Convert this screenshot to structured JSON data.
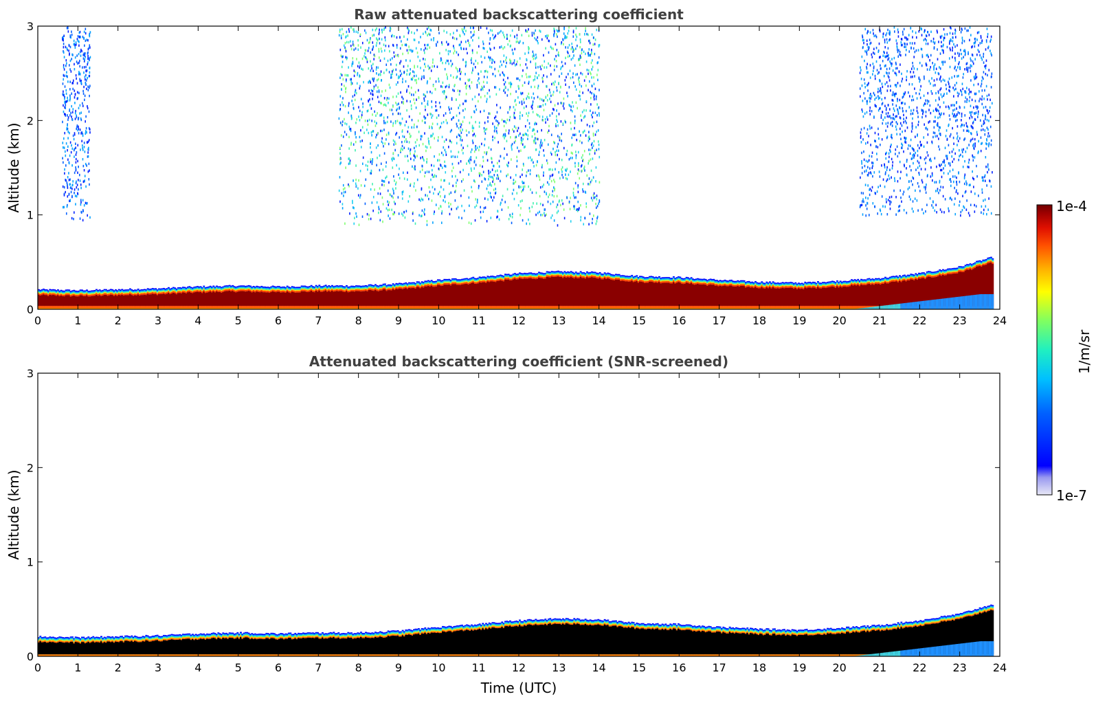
{
  "chart_data": [
    {
      "type": "heatmap",
      "title": "Raw attenuated backscattering coefficient",
      "xlabel": "",
      "ylabel": "Altitude (km)",
      "xlim": [
        0,
        24
      ],
      "ylim": [
        0,
        3
      ],
      "xticks": [
        "0",
        "1",
        "2",
        "3",
        "4",
        "5",
        "6",
        "7",
        "8",
        "9",
        "10",
        "11",
        "12",
        "13",
        "14",
        "15",
        "16",
        "17",
        "18",
        "19",
        "20",
        "21",
        "22",
        "23",
        "24"
      ],
      "yticks": [
        "0",
        "1",
        "2",
        "3"
      ],
      "layer_top_km": [
        [
          0,
          0.21
        ],
        [
          1,
          0.2
        ],
        [
          2,
          0.21
        ],
        [
          3,
          0.22
        ],
        [
          4,
          0.24
        ],
        [
          5,
          0.25
        ],
        [
          6,
          0.24
        ],
        [
          7,
          0.25
        ],
        [
          8,
          0.25
        ],
        [
          9,
          0.27
        ],
        [
          10,
          0.31
        ],
        [
          11,
          0.34
        ],
        [
          12,
          0.38
        ],
        [
          13,
          0.4
        ],
        [
          14,
          0.39
        ],
        [
          15,
          0.35
        ],
        [
          16,
          0.34
        ],
        [
          17,
          0.31
        ],
        [
          18,
          0.29
        ],
        [
          19,
          0.28
        ],
        [
          20,
          0.3
        ],
        [
          21,
          0.33
        ],
        [
          22,
          0.38
        ],
        [
          23,
          0.45
        ],
        [
          23.8,
          0.55
        ]
      ],
      "noise_regions": [
        {
          "x_range": [
            0.6,
            1.3
          ],
          "alt_range_km": [
            0.95,
            3.0
          ]
        },
        {
          "x_range": [
            7.5,
            14.0
          ],
          "alt_range_km": [
            0.9,
            3.0
          ]
        },
        {
          "x_range": [
            20.5,
            23.8
          ],
          "alt_range_km": [
            1.0,
            3.0
          ]
        }
      ]
    },
    {
      "type": "heatmap",
      "title": "Attenuated backscattering coefficient (SNR-screened)",
      "xlabel": "Time (UTC)",
      "ylabel": "Altitude (km)",
      "xlim": [
        0,
        24
      ],
      "ylim": [
        0,
        3
      ],
      "xticks": [
        "0",
        "1",
        "2",
        "3",
        "4",
        "5",
        "6",
        "7",
        "8",
        "9",
        "10",
        "11",
        "12",
        "13",
        "14",
        "15",
        "16",
        "17",
        "18",
        "19",
        "20",
        "21",
        "22",
        "23",
        "24"
      ],
      "yticks": [
        "0",
        "1",
        "2",
        "3"
      ],
      "layer_top_km": [
        [
          0,
          0.21
        ],
        [
          1,
          0.2
        ],
        [
          2,
          0.21
        ],
        [
          3,
          0.22
        ],
        [
          4,
          0.24
        ],
        [
          5,
          0.25
        ],
        [
          6,
          0.24
        ],
        [
          7,
          0.25
        ],
        [
          8,
          0.25
        ],
        [
          9,
          0.27
        ],
        [
          10,
          0.31
        ],
        [
          11,
          0.34
        ],
        [
          12,
          0.38
        ],
        [
          13,
          0.4
        ],
        [
          14,
          0.39
        ],
        [
          15,
          0.35
        ],
        [
          16,
          0.34
        ],
        [
          17,
          0.31
        ],
        [
          18,
          0.29
        ],
        [
          19,
          0.28
        ],
        [
          20,
          0.3
        ],
        [
          21,
          0.33
        ],
        [
          22,
          0.38
        ],
        [
          23,
          0.45
        ],
        [
          23.8,
          0.55
        ]
      ]
    }
  ],
  "colorbar": {
    "max_label": "1e-4",
    "min_label": "1e-7",
    "unit_label": "1/m/sr",
    "colormap": [
      "#e8e8f6",
      "#9898f0",
      "#0000ff",
      "#0060ff",
      "#00c0ff",
      "#20f0c0",
      "#80ff60",
      "#ffff00",
      "#ffb000",
      "#ff5000",
      "#e01000",
      "#a00000",
      "#700000"
    ]
  }
}
